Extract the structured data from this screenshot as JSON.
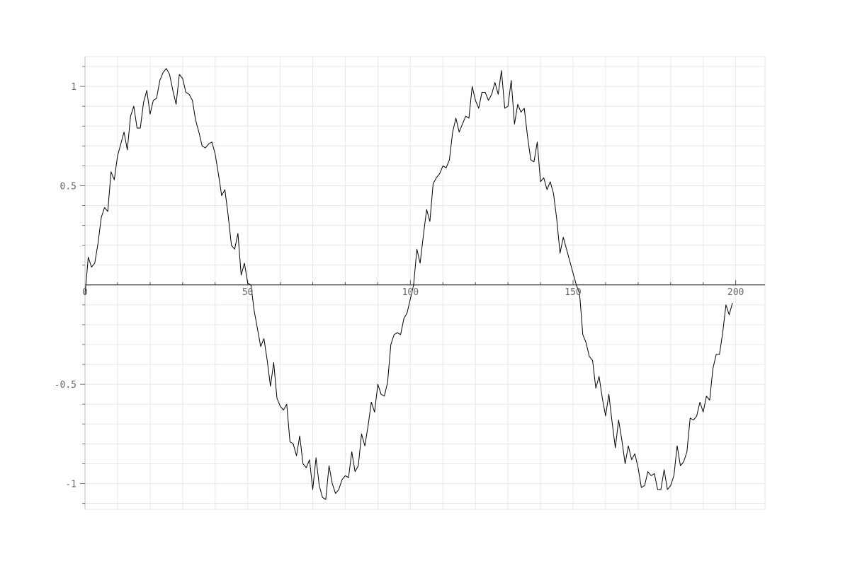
{
  "chart_data": {
    "type": "line",
    "title": "",
    "xlabel": "",
    "ylabel": "",
    "xlim": [
      0,
      209
    ],
    "ylim": [
      -1.13,
      1.15
    ],
    "x_ticks": [
      0,
      50,
      100,
      150,
      200
    ],
    "x_tick_labels": [
      "0",
      "50",
      "100",
      "150",
      "200"
    ],
    "y_ticks": [
      1,
      0.5,
      -0.5,
      -1
    ],
    "y_tick_labels": [
      "1",
      "0.5",
      "-0.5",
      "-1"
    ],
    "grid": true,
    "legend": "none",
    "series": [
      {
        "color": "#000000",
        "x": [
          0,
          1,
          2,
          3,
          4,
          5,
          6,
          7,
          8,
          9,
          10,
          11,
          12,
          13,
          14,
          15,
          16,
          17,
          18,
          19,
          20,
          21,
          22,
          23,
          24,
          25,
          26,
          27,
          28,
          29,
          30,
          31,
          32,
          33,
          34,
          35,
          36,
          37,
          38,
          39,
          40,
          41,
          42,
          43,
          44,
          45,
          46,
          47,
          48,
          49,
          50,
          51,
          52,
          53,
          54,
          55,
          56,
          57,
          58,
          59,
          60,
          61,
          62,
          63,
          64,
          65,
          66,
          67,
          68,
          69,
          70,
          71,
          72,
          73,
          74,
          75,
          76,
          77,
          78,
          79,
          80,
          81,
          82,
          83,
          84,
          85,
          86,
          87,
          88,
          89,
          90,
          91,
          92,
          93,
          94,
          95,
          96,
          97,
          98,
          99,
          100,
          101,
          102,
          103,
          104,
          105,
          106,
          107,
          108,
          109,
          110,
          111,
          112,
          113,
          114,
          115,
          116,
          117,
          118,
          119,
          120,
          121,
          122,
          123,
          124,
          125,
          126,
          127,
          128,
          129,
          130,
          131,
          132,
          133,
          134,
          135,
          136,
          137,
          138,
          139,
          140,
          141,
          142,
          143,
          144,
          145,
          146,
          147,
          148,
          149,
          150,
          151,
          152,
          153,
          154,
          155,
          156,
          157,
          158,
          159,
          160,
          161,
          162,
          163,
          164,
          165,
          166,
          167,
          168,
          169,
          170,
          171,
          172,
          173,
          174,
          175,
          176,
          177,
          178,
          179,
          180,
          181,
          182,
          183,
          184,
          185,
          186,
          187,
          188,
          189,
          190,
          191,
          192,
          193,
          194,
          195,
          196,
          197,
          198,
          199
        ],
        "values": [
          -0.05,
          0.14,
          0.09,
          0.11,
          0.21,
          0.34,
          0.39,
          0.37,
          0.57,
          0.53,
          0.65,
          0.71,
          0.77,
          0.68,
          0.85,
          0.9,
          0.79,
          0.79,
          0.92,
          0.98,
          0.86,
          0.93,
          0.94,
          1.03,
          1.07,
          1.09,
          1.06,
          0.98,
          0.91,
          1.06,
          1.04,
          0.97,
          0.96,
          0.93,
          0.83,
          0.77,
          0.7,
          0.69,
          0.71,
          0.72,
          0.66,
          0.56,
          0.45,
          0.48,
          0.35,
          0.2,
          0.18,
          0.26,
          0.05,
          0.11,
          0.01,
          0.0,
          -0.13,
          -0.22,
          -0.31,
          -0.27,
          -0.38,
          -0.51,
          -0.39,
          -0.57,
          -0.61,
          -0.63,
          -0.6,
          -0.79,
          -0.8,
          -0.86,
          -0.76,
          -0.9,
          -0.92,
          -0.88,
          -1.03,
          -0.87,
          -1.01,
          -1.07,
          -1.08,
          -0.91,
          -1.0,
          -1.05,
          -1.03,
          -0.98,
          -0.96,
          -0.97,
          -0.84,
          -0.94,
          -0.91,
          -0.75,
          -0.81,
          -0.71,
          -0.59,
          -0.64,
          -0.5,
          -0.55,
          -0.56,
          -0.49,
          -0.3,
          -0.25,
          -0.24,
          -0.25,
          -0.17,
          -0.14,
          -0.07,
          0.0,
          0.18,
          0.11,
          0.25,
          0.38,
          0.32,
          0.51,
          0.54,
          0.56,
          0.6,
          0.59,
          0.63,
          0.77,
          0.84,
          0.77,
          0.81,
          0.85,
          0.84,
          1.0,
          0.93,
          0.89,
          0.97,
          0.97,
          0.93,
          0.96,
          1.02,
          0.96,
          1.08,
          0.89,
          0.9,
          1.03,
          0.81,
          0.91,
          0.87,
          0.89,
          0.75,
          0.63,
          0.62,
          0.72,
          0.52,
          0.54,
          0.48,
          0.52,
          0.46,
          0.33,
          0.16,
          0.24,
          0.18,
          0.12,
          0.06,
          0.0,
          -0.04,
          -0.25,
          -0.29,
          -0.36,
          -0.38,
          -0.52,
          -0.46,
          -0.57,
          -0.66,
          -0.55,
          -0.69,
          -0.82,
          -0.68,
          -0.78,
          -0.9,
          -0.81,
          -0.88,
          -0.85,
          -0.92,
          -1.02,
          -1.01,
          -0.94,
          -0.96,
          -0.95,
          -1.03,
          -1.03,
          -0.93,
          -1.03,
          -1.01,
          -0.96,
          -0.81,
          -0.91,
          -0.89,
          -0.84,
          -0.67,
          -0.68,
          -0.66,
          -0.59,
          -0.64,
          -0.56,
          -0.58,
          -0.42,
          -0.35,
          -0.35,
          -0.24,
          -0.1,
          -0.15,
          -0.09
        ]
      }
    ]
  }
}
